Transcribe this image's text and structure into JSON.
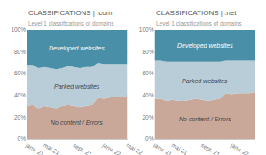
{
  "chart_data": [
    {
      "type": "area",
      "stacked": true,
      "grid": true,
      "title": "CLASSIFICATIONS | .com",
      "subtitle": "Level 1 classifications of domains",
      "categories": [
        "janv. 21",
        null,
        null,
        "mai 21",
        null,
        null,
        null,
        null,
        "sept. 21",
        null,
        null,
        null,
        null,
        "janv. 22",
        null,
        null,
        null,
        "mai 22"
      ],
      "series": [
        {
          "name": "No content / Errors",
          "color": "#c9a89a",
          "values": [
            0.3,
            0.31,
            0.28,
            0.3,
            0.29,
            0.28,
            0.3,
            0.31,
            0.3,
            0.29,
            0.3,
            0.31,
            0.38,
            0.37,
            0.38,
            0.39,
            0.38,
            0.4
          ]
        },
        {
          "name": "Parked websites",
          "color": "#b8cdd8",
          "values": [
            0.38,
            0.37,
            0.37,
            0.36,
            0.36,
            0.36,
            0.35,
            0.36,
            0.36,
            0.36,
            0.36,
            0.35,
            0.32,
            0.32,
            0.31,
            0.3,
            0.31,
            0.29
          ]
        },
        {
          "name": "Developed websites",
          "color": "#4a8fa8",
          "values": [
            0.32,
            0.32,
            0.35,
            0.34,
            0.35,
            0.36,
            0.35,
            0.33,
            0.34,
            0.35,
            0.34,
            0.34,
            0.3,
            0.31,
            0.31,
            0.31,
            0.31,
            0.31
          ]
        }
      ],
      "ylim": [
        0,
        1.0
      ],
      "yticks": [
        {
          "value": 0,
          "label": "0%"
        },
        {
          "value": 0.2,
          "label": "20%"
        },
        {
          "value": 0.4,
          "label": "40%"
        },
        {
          "value": 0.6,
          "label": "60%"
        },
        {
          "value": 0.8,
          "label": "80%"
        },
        {
          "value": 1.0,
          "label": "100%"
        }
      ]
    },
    {
      "type": "area",
      "stacked": true,
      "grid": true,
      "title": "CLASSIFICATIONS | .net",
      "subtitle": "Level 1 classifications of domains",
      "categories": [
        "janv. 21",
        null,
        null,
        "mai 21",
        null,
        null,
        null,
        null,
        "sept. 21",
        null,
        null,
        null,
        null,
        "janv. 22",
        null,
        null,
        null,
        "mai 22"
      ],
      "series": [
        {
          "name": "No content / Errors",
          "color": "#c9a89a",
          "values": [
            0.37,
            0.37,
            0.35,
            0.36,
            0.35,
            0.35,
            0.36,
            0.37,
            0.36,
            0.35,
            0.36,
            0.37,
            0.42,
            0.41,
            0.42,
            0.42,
            0.42,
            0.43
          ]
        },
        {
          "name": "Parked websites",
          "color": "#b8cdd8",
          "values": [
            0.35,
            0.35,
            0.36,
            0.35,
            0.36,
            0.36,
            0.35,
            0.34,
            0.35,
            0.36,
            0.35,
            0.34,
            0.3,
            0.31,
            0.3,
            0.3,
            0.3,
            0.29
          ]
        },
        {
          "name": "Developed websites",
          "color": "#4a8fa8",
          "values": [
            0.28,
            0.28,
            0.29,
            0.29,
            0.29,
            0.29,
            0.29,
            0.29,
            0.29,
            0.29,
            0.29,
            0.29,
            0.28,
            0.28,
            0.28,
            0.28,
            0.28,
            0.28
          ]
        }
      ],
      "ylim": [
        0,
        1.0
      ],
      "yticks": [
        {
          "value": 0,
          "label": "0%"
        },
        {
          "value": 0.2,
          "label": "20%"
        },
        {
          "value": 0.4,
          "label": "40%"
        },
        {
          "value": 0.6,
          "label": "60%"
        },
        {
          "value": 0.8,
          "label": "80%"
        },
        {
          "value": 1.0,
          "label": "100%"
        }
      ]
    }
  ]
}
